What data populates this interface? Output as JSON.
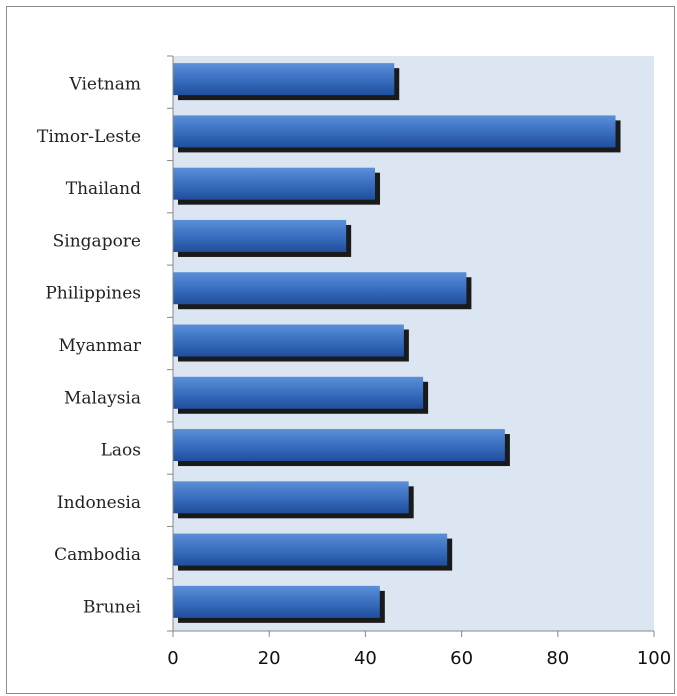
{
  "chart_data": {
    "type": "bar",
    "orientation": "horizontal",
    "categories": [
      "Brunei",
      "Cambodia",
      "Indonesia",
      "Laos",
      "Malaysia",
      "Myanmar",
      "Philippines",
      "Singapore",
      "Thailand",
      "Timor-Leste",
      "Vietnam"
    ],
    "values": [
      43,
      57,
      49,
      69,
      52,
      48,
      61,
      36,
      42,
      92,
      46
    ],
    "xlim": [
      0,
      100
    ],
    "xticks": [
      0,
      20,
      40,
      60,
      80,
      100
    ],
    "xtick_labels": [
      "0",
      "20",
      "40",
      "60",
      "80",
      "100"
    ],
    "title": "",
    "xlabel": "",
    "ylabel": "",
    "grid": false,
    "legend": "none",
    "colors": {
      "plot_background": "#dce6f2",
      "bar_top": "#5b8fd8",
      "bar_bottom": "#1f4e9c",
      "bar_shadow": "#1a1a1a",
      "axis": "#888888"
    }
  }
}
